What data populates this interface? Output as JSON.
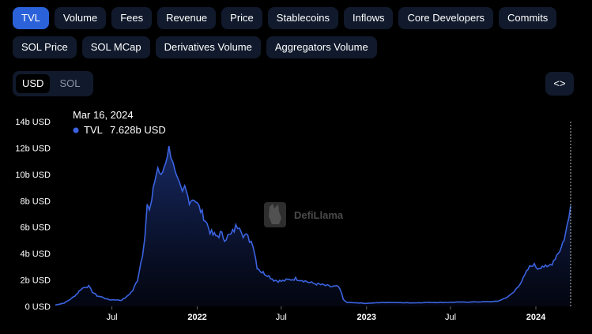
{
  "tabs_row1": [
    "TVL",
    "Volume",
    "Fees",
    "Revenue",
    "Price",
    "Stablecoins",
    "Inflows",
    "Core Developers",
    "Commits"
  ],
  "tabs_row2": [
    "SOL Price",
    "SOL MCap",
    "Derivatives Volume",
    "Aggregators Volume"
  ],
  "active_tab": "TVL",
  "currency_toggle": {
    "options": [
      "USD",
      "SOL"
    ],
    "selected": "USD"
  },
  "embed_button_label": "<>",
  "watermark": "DefiLlama",
  "colors": {
    "line": "#3b63e0",
    "active_tab": "#2b62d9",
    "chip_bg": "#111a2c"
  },
  "chart_data": {
    "type": "area",
    "title": "",
    "xlabel": "",
    "ylabel": "",
    "ylim": [
      0,
      14
    ],
    "y_unit": "b USD",
    "y_ticks": [
      "0 USD",
      "2b USD",
      "4b USD",
      "6b USD",
      "8b USD",
      "10b USD",
      "12b USD",
      "14b USD"
    ],
    "x_ticks": [
      {
        "label": "Jul",
        "date": "2021-07-01"
      },
      {
        "label": "2022",
        "date": "2022-01-01"
      },
      {
        "label": "Jul",
        "date": "2022-07-01"
      },
      {
        "label": "2023",
        "date": "2023-01-01"
      },
      {
        "label": "Jul",
        "date": "2023-07-01"
      },
      {
        "label": "2024",
        "date": "2024-01-01"
      }
    ],
    "x_range": [
      "2021-03-01",
      "2024-03-16"
    ],
    "tooltip": {
      "date": "Mar 16, 2024",
      "series": "TVL",
      "value": "7.628b USD"
    },
    "series": [
      {
        "name": "TVL",
        "points": [
          [
            "2021-03-01",
            0.1
          ],
          [
            "2021-03-20",
            0.25
          ],
          [
            "2021-04-05",
            0.6
          ],
          [
            "2021-04-15",
            0.9
          ],
          [
            "2021-04-25",
            1.3
          ],
          [
            "2021-05-05",
            1.5
          ],
          [
            "2021-05-12",
            1.5
          ],
          [
            "2021-05-20",
            1.1
          ],
          [
            "2021-05-30",
            0.8
          ],
          [
            "2021-06-10",
            0.7
          ],
          [
            "2021-06-25",
            0.5
          ],
          [
            "2021-07-10",
            0.5
          ],
          [
            "2021-07-20",
            0.45
          ],
          [
            "2021-08-01",
            0.7
          ],
          [
            "2021-08-15",
            1.2
          ],
          [
            "2021-08-25",
            2.0
          ],
          [
            "2021-09-05",
            4.0
          ],
          [
            "2021-09-10",
            5.5
          ],
          [
            "2021-09-15",
            7.8
          ],
          [
            "2021-09-20",
            7.2
          ],
          [
            "2021-09-25",
            8.0
          ],
          [
            "2021-10-01",
            9.5
          ],
          [
            "2021-10-08",
            10.5
          ],
          [
            "2021-10-15",
            9.8
          ],
          [
            "2021-10-25",
            11.0
          ],
          [
            "2021-11-01",
            12.0
          ],
          [
            "2021-11-05",
            11.5
          ],
          [
            "2021-11-10",
            11.0
          ],
          [
            "2021-11-15",
            10.0
          ],
          [
            "2021-11-20",
            9.5
          ],
          [
            "2021-11-30",
            8.5
          ],
          [
            "2021-12-05",
            9.0
          ],
          [
            "2021-12-15",
            8.0
          ],
          [
            "2021-12-25",
            8.2
          ],
          [
            "2022-01-05",
            7.5
          ],
          [
            "2022-01-15",
            6.8
          ],
          [
            "2022-01-25",
            6.0
          ],
          [
            "2022-02-01",
            5.5
          ],
          [
            "2022-02-10",
            5.3
          ],
          [
            "2022-02-20",
            5.5
          ],
          [
            "2022-03-01",
            5.2
          ],
          [
            "2022-03-15",
            5.4
          ],
          [
            "2022-03-25",
            6.0
          ],
          [
            "2022-04-02",
            6.2
          ],
          [
            "2022-04-10",
            5.5
          ],
          [
            "2022-04-20",
            5.2
          ],
          [
            "2022-05-01",
            4.8
          ],
          [
            "2022-05-10",
            3.0
          ],
          [
            "2022-05-20",
            2.6
          ],
          [
            "2022-06-01",
            2.4
          ],
          [
            "2022-06-15",
            2.0
          ],
          [
            "2022-07-01",
            1.9
          ],
          [
            "2022-07-15",
            2.0
          ],
          [
            "2022-08-01",
            2.1
          ],
          [
            "2022-08-15",
            2.0
          ],
          [
            "2022-09-01",
            1.8
          ],
          [
            "2022-09-15",
            1.7
          ],
          [
            "2022-10-01",
            1.6
          ],
          [
            "2022-10-15",
            1.5
          ],
          [
            "2022-11-01",
            1.5
          ],
          [
            "2022-11-08",
            1.0
          ],
          [
            "2022-11-12",
            0.5
          ],
          [
            "2022-11-20",
            0.3
          ],
          [
            "2022-12-01",
            0.28
          ],
          [
            "2022-12-20",
            0.25
          ],
          [
            "2023-01-01",
            0.22
          ],
          [
            "2023-01-20",
            0.28
          ],
          [
            "2023-02-15",
            0.3
          ],
          [
            "2023-03-15",
            0.28
          ],
          [
            "2023-04-15",
            0.27
          ],
          [
            "2023-05-15",
            0.3
          ],
          [
            "2023-06-15",
            0.3
          ],
          [
            "2023-07-15",
            0.32
          ],
          [
            "2023-08-15",
            0.33
          ],
          [
            "2023-09-15",
            0.35
          ],
          [
            "2023-10-10",
            0.38
          ],
          [
            "2023-10-25",
            0.6
          ],
          [
            "2023-11-05",
            0.8
          ],
          [
            "2023-11-15",
            1.1
          ],
          [
            "2023-11-25",
            1.6
          ],
          [
            "2023-12-05",
            2.1
          ],
          [
            "2023-12-15",
            2.8
          ],
          [
            "2023-12-25",
            3.2
          ],
          [
            "2024-01-05",
            2.9
          ],
          [
            "2024-01-15",
            3.1
          ],
          [
            "2024-01-25",
            2.9
          ],
          [
            "2024-02-05",
            3.3
          ],
          [
            "2024-02-15",
            3.9
          ],
          [
            "2024-02-25",
            4.5
          ],
          [
            "2024-03-05",
            5.5
          ],
          [
            "2024-03-12",
            6.7
          ],
          [
            "2024-03-16",
            7.628
          ]
        ]
      }
    ],
    "grid": false,
    "legend": "none"
  }
}
